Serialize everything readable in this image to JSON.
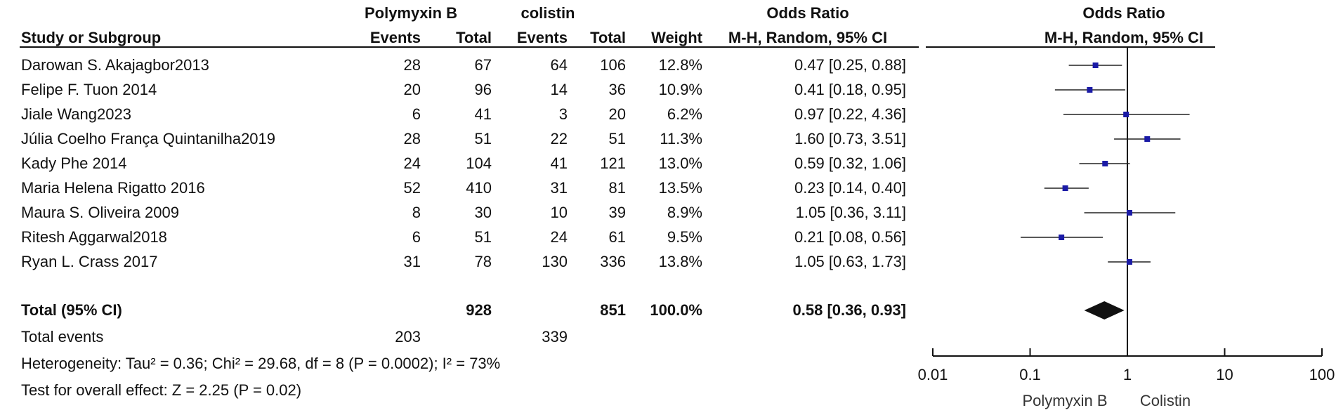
{
  "header": {
    "group1": "Polymyxin B",
    "group2": "colistin",
    "col_study": "Study or Subgroup",
    "col_events": "Events",
    "col_total": "Total",
    "col_weight": "Weight",
    "col_or_title": "Odds Ratio",
    "col_or_sub": "M-H, Random, 95% CI",
    "plot_title": "Odds Ratio",
    "plot_sub": "M-H, Random, 95% CI"
  },
  "studies": [
    {
      "name": "Darowan S. Akajagbor2013",
      "e1": "28",
      "t1": "67",
      "e2": "64",
      "t2": "106",
      "weight": "12.8%",
      "ci_text": "0.47 [0.25, 0.88]"
    },
    {
      "name": "Felipe F. Tuon 2014",
      "e1": "20",
      "t1": "96",
      "e2": "14",
      "t2": "36",
      "weight": "10.9%",
      "ci_text": "0.41 [0.18, 0.95]"
    },
    {
      "name": "Jiale Wang2023",
      "e1": "6",
      "t1": "41",
      "e2": "3",
      "t2": "20",
      "weight": "6.2%",
      "ci_text": "0.97 [0.22, 4.36]"
    },
    {
      "name": "Júlia Coelho França Quintanilha2019",
      "e1": "28",
      "t1": "51",
      "e2": "22",
      "t2": "51",
      "weight": "11.3%",
      "ci_text": "1.60 [0.73, 3.51]"
    },
    {
      "name": "Kady Phe 2014",
      "e1": "24",
      "t1": "104",
      "e2": "41",
      "t2": "121",
      "weight": "13.0%",
      "ci_text": "0.59 [0.32, 1.06]"
    },
    {
      "name": "Maria Helena Rigatto 2016",
      "e1": "52",
      "t1": "410",
      "e2": "31",
      "t2": "81",
      "weight": "13.5%",
      "ci_text": "0.23 [0.14, 0.40]"
    },
    {
      "name": "Maura S. Oliveira 2009",
      "e1": "8",
      "t1": "30",
      "e2": "10",
      "t2": "39",
      "weight": "8.9%",
      "ci_text": "1.05 [0.36, 3.11]"
    },
    {
      "name": "Ritesh Aggarwal2018",
      "e1": "6",
      "t1": "51",
      "e2": "24",
      "t2": "61",
      "weight": "9.5%",
      "ci_text": "0.21 [0.08, 0.56]"
    },
    {
      "name": "Ryan L. Crass 2017",
      "e1": "31",
      "t1": "78",
      "e2": "130",
      "t2": "336",
      "weight": "13.8%",
      "ci_text": "1.05 [0.63, 1.73]"
    }
  ],
  "total": {
    "label": "Total (95% CI)",
    "t1": "928",
    "t2": "851",
    "weight": "100.0%",
    "ci_text": "0.58 [0.36, 0.93]"
  },
  "total_events": {
    "label": "Total events",
    "e1": "203",
    "e2": "339"
  },
  "heterogeneity": "Heterogeneity: Tau² = 0.36; Chi² = 29.68, df = 8 (P = 0.0002); I² = 73%",
  "overall_effect": "Test for overall effect: Z = 2.25 (P = 0.02)",
  "axis": {
    "ticks": [
      "0.01",
      "0.1",
      "1",
      "10",
      "100"
    ],
    "left_label": "Polymyxin B",
    "right_label": "Colistin"
  },
  "colors": {
    "marker": "#1a1aa6",
    "ink": "#111111"
  },
  "chart_data": {
    "type": "forest",
    "scale": "log",
    "xlim": [
      0.01,
      100
    ],
    "reference_line": 1,
    "points": [
      {
        "or": 0.47,
        "lo": 0.25,
        "hi": 0.88
      },
      {
        "or": 0.41,
        "lo": 0.18,
        "hi": 0.95
      },
      {
        "or": 0.97,
        "lo": 0.22,
        "hi": 4.36
      },
      {
        "or": 1.6,
        "lo": 0.73,
        "hi": 3.51
      },
      {
        "or": 0.59,
        "lo": 0.32,
        "hi": 1.06
      },
      {
        "or": 0.23,
        "lo": 0.14,
        "hi": 0.4
      },
      {
        "or": 1.05,
        "lo": 0.36,
        "hi": 3.11
      },
      {
        "or": 0.21,
        "lo": 0.08,
        "hi": 0.56
      },
      {
        "or": 1.05,
        "lo": 0.63,
        "hi": 1.73
      }
    ],
    "pooled": {
      "or": 0.58,
      "lo": 0.36,
      "hi": 0.93
    }
  }
}
